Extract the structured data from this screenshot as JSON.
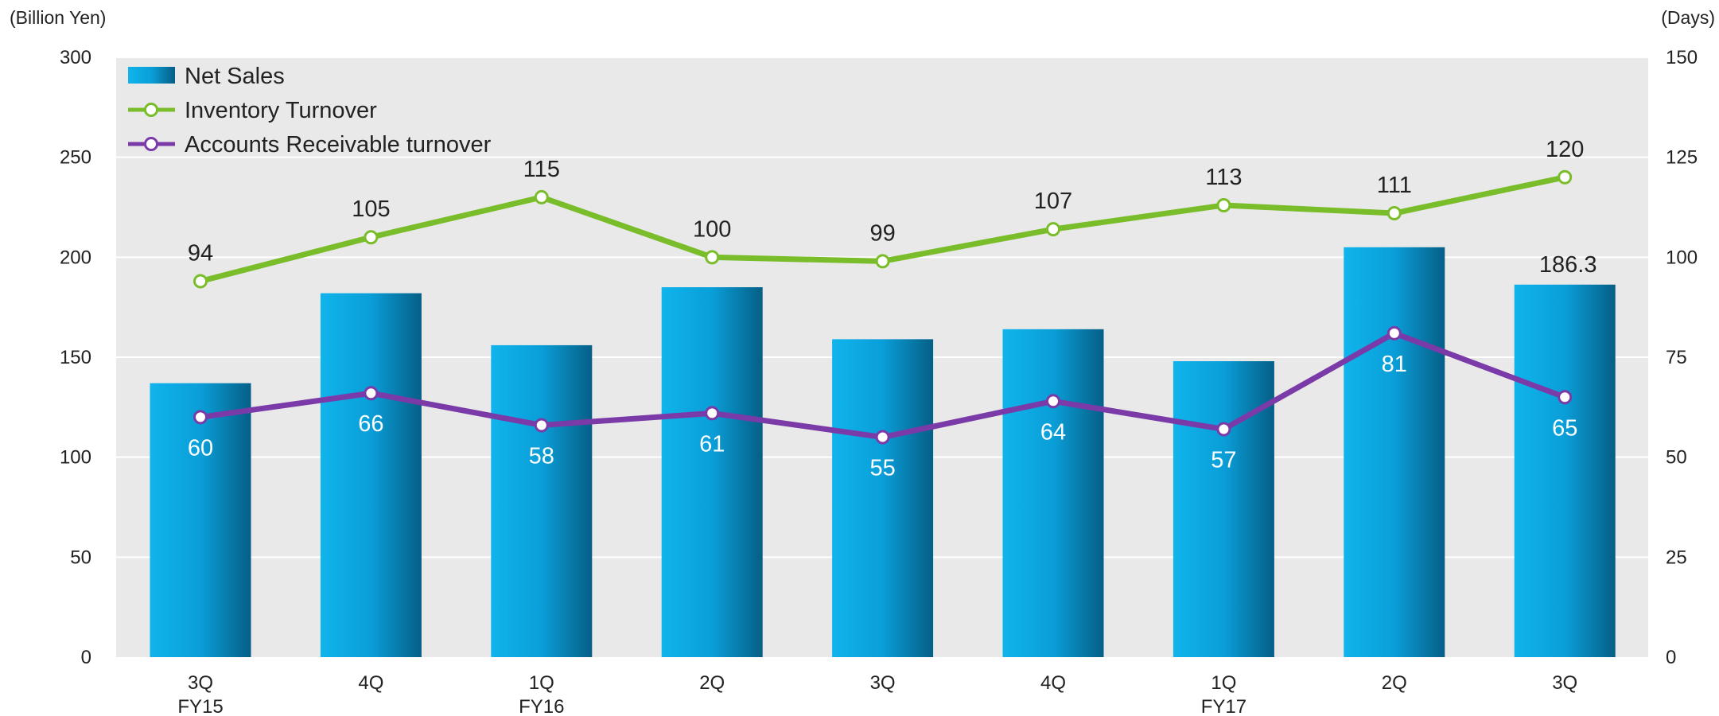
{
  "chart_data": {
    "type": "bar",
    "left_unit": "(Billion Yen)",
    "right_unit": "(Days)",
    "categories": [
      "3Q",
      "4Q",
      "1Q",
      "2Q",
      "3Q",
      "4Q",
      "1Q",
      "2Q",
      "3Q"
    ],
    "fiscal_years": [
      "FY15",
      "",
      "FY16",
      "",
      "",
      "",
      "FY17",
      "",
      ""
    ],
    "y_left": {
      "min": 0,
      "max": 300,
      "ticks": [
        "0",
        "50",
        "100",
        "150",
        "200",
        "250",
        "300"
      ]
    },
    "y_right": {
      "min": 0,
      "max": 150,
      "ticks": [
        "0",
        "25",
        "50",
        "75",
        "100",
        "125",
        "150"
      ]
    },
    "grid": true,
    "legend_position": "top-left",
    "series": [
      {
        "name": "Net Sales",
        "type": "bar",
        "axis": "left",
        "color": "#0a9ed8",
        "values": [
          137,
          182,
          156,
          185,
          159,
          164,
          148,
          205,
          186.3
        ],
        "data_labels": [
          "",
          "",
          "",
          "",
          "",
          "",
          "",
          "",
          "186.3"
        ]
      },
      {
        "name": "Inventory Turnover",
        "type": "line",
        "axis": "right",
        "color": "#7abd2a",
        "values": [
          94,
          105,
          115,
          100,
          99,
          107,
          113,
          111,
          120
        ],
        "data_labels": [
          "94",
          "105",
          "115",
          "100",
          "99",
          "107",
          "113",
          "111",
          "120"
        ]
      },
      {
        "name": "Accounts Receivable turnover",
        "type": "line",
        "axis": "right",
        "color": "#7a3aa8",
        "values": [
          60,
          66,
          58,
          61,
          55,
          64,
          57,
          81,
          65
        ],
        "data_labels": [
          "60",
          "66",
          "58",
          "61",
          "55",
          "64",
          "57",
          "81",
          "65"
        ]
      }
    ]
  }
}
